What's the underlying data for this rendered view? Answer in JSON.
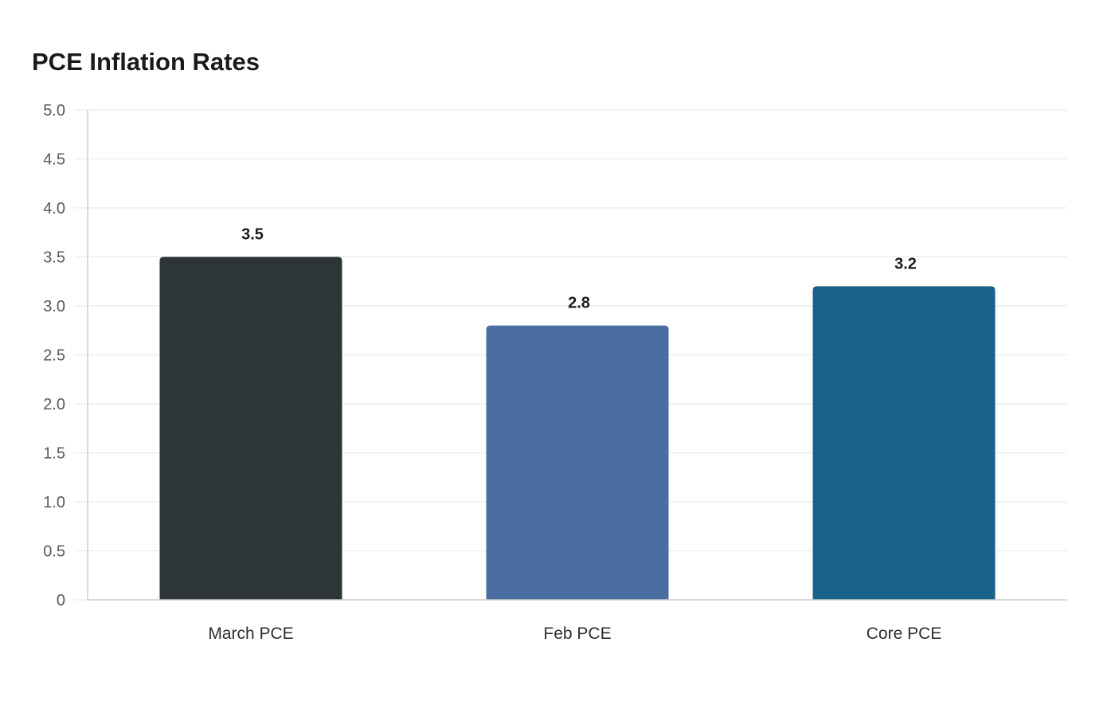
{
  "chart_data": {
    "type": "bar",
    "title": "PCE Inflation Rates",
    "categories": [
      "March PCE",
      "Feb PCE",
      "Core PCE"
    ],
    "values": [
      3.5,
      2.8,
      3.2
    ],
    "data_labels": [
      "3.5",
      "2.8",
      "3.2"
    ],
    "colors": [
      "#2e3538",
      "#4a6ea0",
      "#186289"
    ],
    "ylim": [
      0,
      5
    ],
    "yticks": [
      0,
      0.5,
      1,
      1.5,
      2,
      2.5,
      3,
      3.5,
      4,
      4.5,
      5
    ],
    "ytick_labels": [
      "0",
      "0.5",
      "1.0",
      "1.5",
      "2.0",
      "2.5",
      "3.0",
      "3.5",
      "4.0",
      "4.5",
      "5.0"
    ],
    "xlabel": "",
    "ylabel": "",
    "grid": true,
    "legend": "none"
  }
}
